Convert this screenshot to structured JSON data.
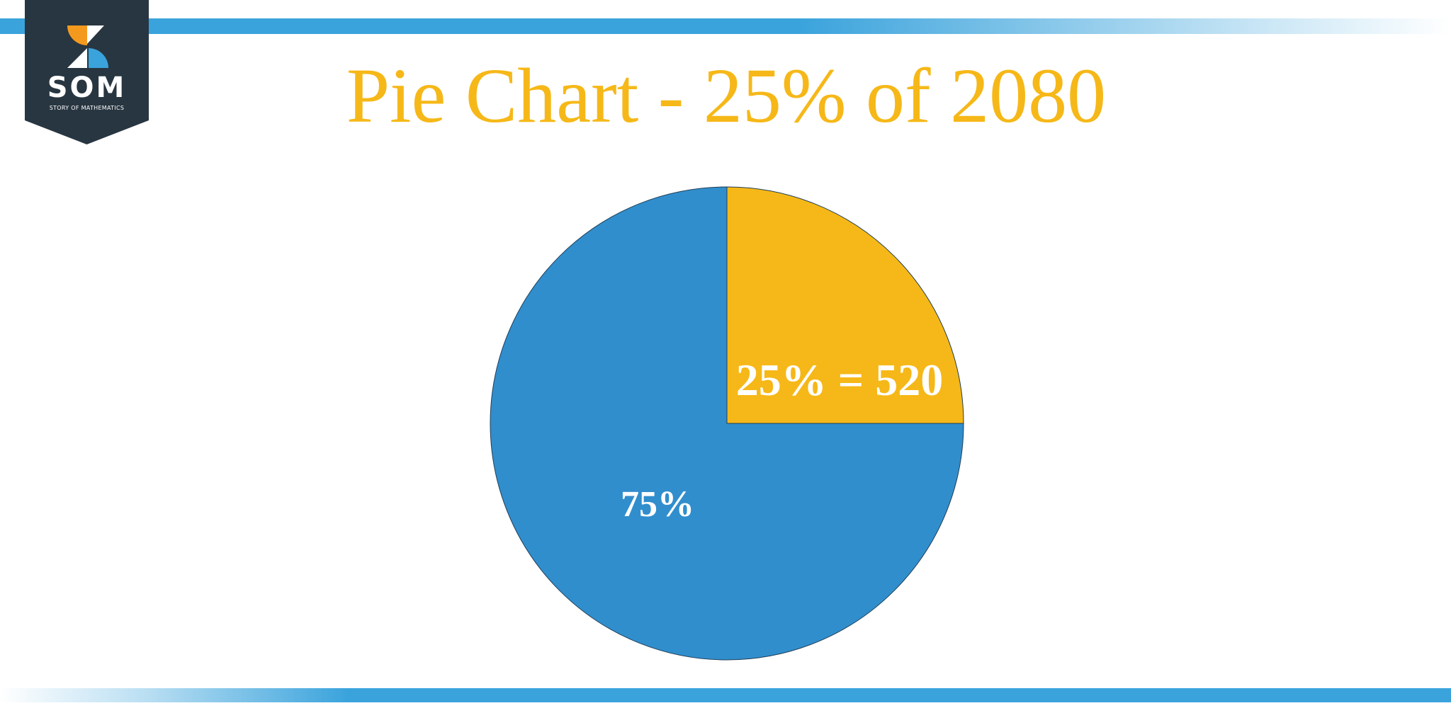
{
  "logo": {
    "text": "SOM",
    "subtitle": "STORY OF MATHEMATICS"
  },
  "colors": {
    "accent_blue": "#3aa3dc",
    "title_gold": "#f6b818",
    "logo_dark": "#283641",
    "logo_orange": "#f39a1e"
  },
  "chart_data": {
    "type": "pie",
    "title": "Pie Chart - 25% of 2080",
    "total": 2080,
    "slices": [
      {
        "value": 25,
        "label": "25% = 520",
        "color": "#f6b818"
      },
      {
        "value": 75,
        "label": "75%",
        "color": "#318ecd"
      }
    ],
    "start_angle": "12 o'clock",
    "direction": "clockwise",
    "legend": "none"
  }
}
